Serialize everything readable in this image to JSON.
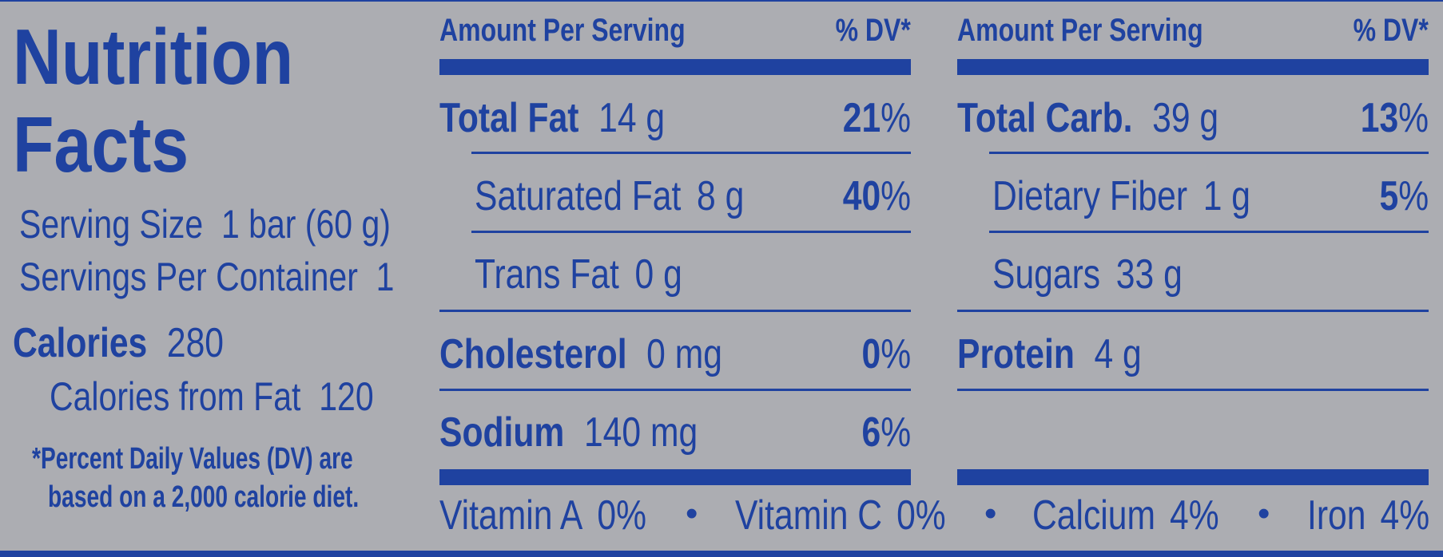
{
  "title_line1": "Nutrition",
  "title_line2": "Facts",
  "serving_size_label": "Serving Size",
  "serving_size_value": "1 bar (60 g)",
  "servings_label": "Servings Per Container",
  "servings_value": "1",
  "calories_label": "Calories",
  "calories_value": "280",
  "calories_fat_label": "Calories from Fat",
  "calories_fat_value": "120",
  "footnote_line1": "*Percent Daily Values (DV) are",
  "footnote_line2": "based on a 2,000 calorie diet.",
  "header_amount": "Amount Per Serving",
  "header_dv": "% DV*",
  "left_rows": [
    {
      "name": "Total Fat",
      "amount": "14 g",
      "dv": "21",
      "pct": "%"
    },
    {
      "name": "Saturated Fat",
      "amount": "8 g",
      "dv": "40",
      "pct": "%"
    },
    {
      "name": "Trans Fat",
      "amount": "0 g"
    },
    {
      "name": "Cholesterol",
      "amount": "0 mg",
      "dv": "0",
      "pct": "%"
    },
    {
      "name": "Sodium",
      "amount": "140 mg",
      "dv": "6",
      "pct": "%"
    }
  ],
  "right_rows": [
    {
      "name": "Total Carb.",
      "amount": "39 g",
      "dv": "13",
      "pct": "%"
    },
    {
      "name": "Dietary Fiber",
      "amount": "1 g",
      "dv": "5",
      "pct": "%"
    },
    {
      "name": "Sugars",
      "amount": "33 g"
    },
    {
      "name": "Protein",
      "amount": "4 g"
    }
  ],
  "vitamins": [
    {
      "name": "Vitamin A",
      "value": "0%"
    },
    {
      "name": "Vitamin C",
      "value": "0%"
    },
    {
      "name": "Calcium",
      "value": "4%"
    },
    {
      "name": "Iron",
      "value": "4%"
    }
  ],
  "separator": "•",
  "colors": {
    "background": "#acadb2",
    "ink": "#1f42a0"
  }
}
